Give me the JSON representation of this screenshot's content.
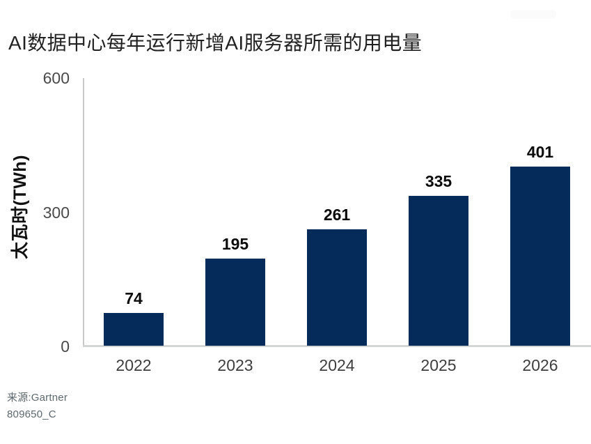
{
  "title": "AI数据中心每年运行新增AI服务器所需的用电量",
  "source": {
    "line1": "来源:Gartner",
    "line2": "809650_C"
  },
  "colors": {
    "bar": "#052b5a",
    "axis_line": "#c7c9c9",
    "baseline": "#d4d6d6",
    "title_text": "#212121",
    "tick_text": "#4a4a4a",
    "value_text": "#0b0b0b",
    "source_text": "#5d686d"
  },
  "chart_data": {
    "type": "bar",
    "title": "AI数据中心每年运行新增AI服务器所需的用电量",
    "categories": [
      "2022",
      "2023",
      "2024",
      "2025",
      "2026"
    ],
    "values": [
      74,
      195,
      261,
      335,
      401
    ],
    "xlabel": "",
    "ylabel": "太瓦时(TWh)",
    "ylim": [
      0,
      600
    ],
    "y_ticks": [
      0,
      300,
      600
    ],
    "grid": false,
    "legend": false,
    "value_labels": true,
    "unit": "TWh"
  }
}
